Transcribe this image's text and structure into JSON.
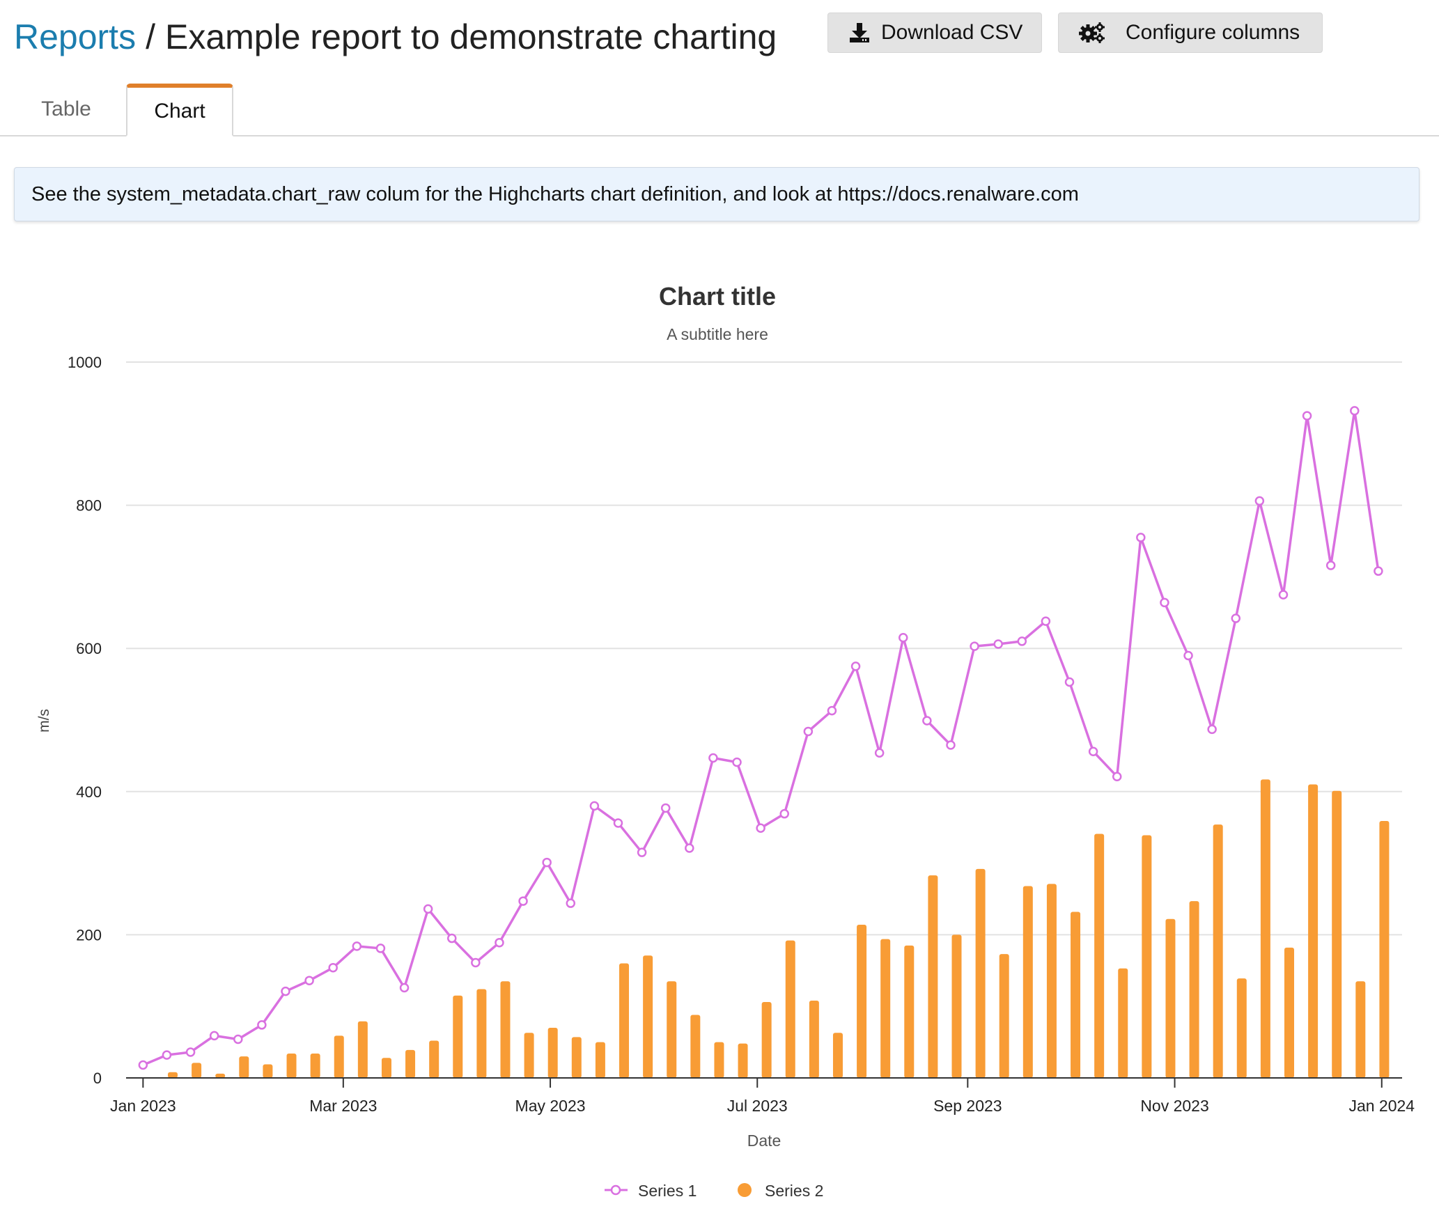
{
  "breadcrumb": {
    "link": "Reports",
    "separator": "/",
    "title": "Example report to demonstrate charting"
  },
  "toolbar": {
    "download_label": "Download CSV",
    "configure_label": "Configure columns"
  },
  "tabs": [
    {
      "label": "Table",
      "active": false
    },
    {
      "label": "Chart",
      "active": true
    }
  ],
  "notice": "See the system_metadata.chart_raw colum for the Highcharts chart definition, and look at https://docs.renalware.com",
  "colors": {
    "series1": "#d970e0",
    "series2": "#f89c35",
    "link": "#1b7dae",
    "tab_accent": "#e07f2a"
  },
  "chart_data": {
    "type": "line",
    "title": "Chart title",
    "subtitle": "A subtitle here",
    "xlabel": "Date",
    "ylabel": "m/s",
    "ylim": [
      0,
      1000
    ],
    "yticks": [
      0,
      200,
      400,
      600,
      800,
      1000
    ],
    "xticks": [
      {
        "date": "2023-01-01",
        "label": "Jan 2023"
      },
      {
        "date": "2023-03-01",
        "label": "Mar 2023"
      },
      {
        "date": "2023-05-01",
        "label": "May 2023"
      },
      {
        "date": "2023-07-01",
        "label": "Jul 2023"
      },
      {
        "date": "2023-09-01",
        "label": "Sep 2023"
      },
      {
        "date": "2023-11-01",
        "label": "Nov 2023"
      },
      {
        "date": "2024-01-01",
        "label": "Jan 2024"
      }
    ],
    "xlim": [
      "2022-12-27",
      "2024-01-07"
    ],
    "x": [
      "2023-01-01",
      "2023-01-08",
      "2023-01-15",
      "2023-01-22",
      "2023-01-29",
      "2023-02-05",
      "2023-02-12",
      "2023-02-19",
      "2023-02-26",
      "2023-03-05",
      "2023-03-12",
      "2023-03-19",
      "2023-03-26",
      "2023-04-02",
      "2023-04-09",
      "2023-04-16",
      "2023-04-23",
      "2023-04-30",
      "2023-05-07",
      "2023-05-14",
      "2023-05-21",
      "2023-05-28",
      "2023-06-04",
      "2023-06-11",
      "2023-06-18",
      "2023-06-25",
      "2023-07-02",
      "2023-07-09",
      "2023-07-16",
      "2023-07-23",
      "2023-07-30",
      "2023-08-06",
      "2023-08-13",
      "2023-08-20",
      "2023-08-27",
      "2023-09-03",
      "2023-09-10",
      "2023-09-17",
      "2023-09-24",
      "2023-10-01",
      "2023-10-08",
      "2023-10-15",
      "2023-10-22",
      "2023-10-29",
      "2023-11-05",
      "2023-11-12",
      "2023-11-19",
      "2023-11-26",
      "2023-12-03",
      "2023-12-10",
      "2023-12-17",
      "2023-12-24",
      "2023-12-31"
    ],
    "legend_position": "bottom-center",
    "series": [
      {
        "name": "Series 1",
        "kind": "line",
        "values": [
          18,
          32,
          36,
          59,
          54,
          74,
          121,
          136,
          154,
          184,
          181,
          126,
          236,
          195,
          161,
          189,
          247,
          301,
          244,
          380,
          356,
          315,
          377,
          321,
          447,
          441,
          349,
          369,
          484,
          513,
          575,
          454,
          615,
          499,
          465,
          603,
          606,
          610,
          638,
          553,
          456,
          421,
          755,
          664,
          590,
          487,
          642,
          806,
          675,
          925,
          716,
          932,
          708
        ]
      },
      {
        "name": "Series 2",
        "kind": "column",
        "values": [
          1,
          8,
          21,
          6,
          30,
          19,
          34,
          34,
          59,
          79,
          28,
          39,
          52,
          115,
          124,
          135,
          63,
          70,
          57,
          50,
          160,
          171,
          135,
          88,
          50,
          48,
          106,
          192,
          108,
          63,
          214,
          194,
          185,
          283,
          200,
          292,
          173,
          268,
          271,
          232,
          341,
          153,
          339,
          222,
          247,
          354,
          139,
          417,
          182,
          410,
          401,
          135,
          359
        ]
      }
    ]
  }
}
